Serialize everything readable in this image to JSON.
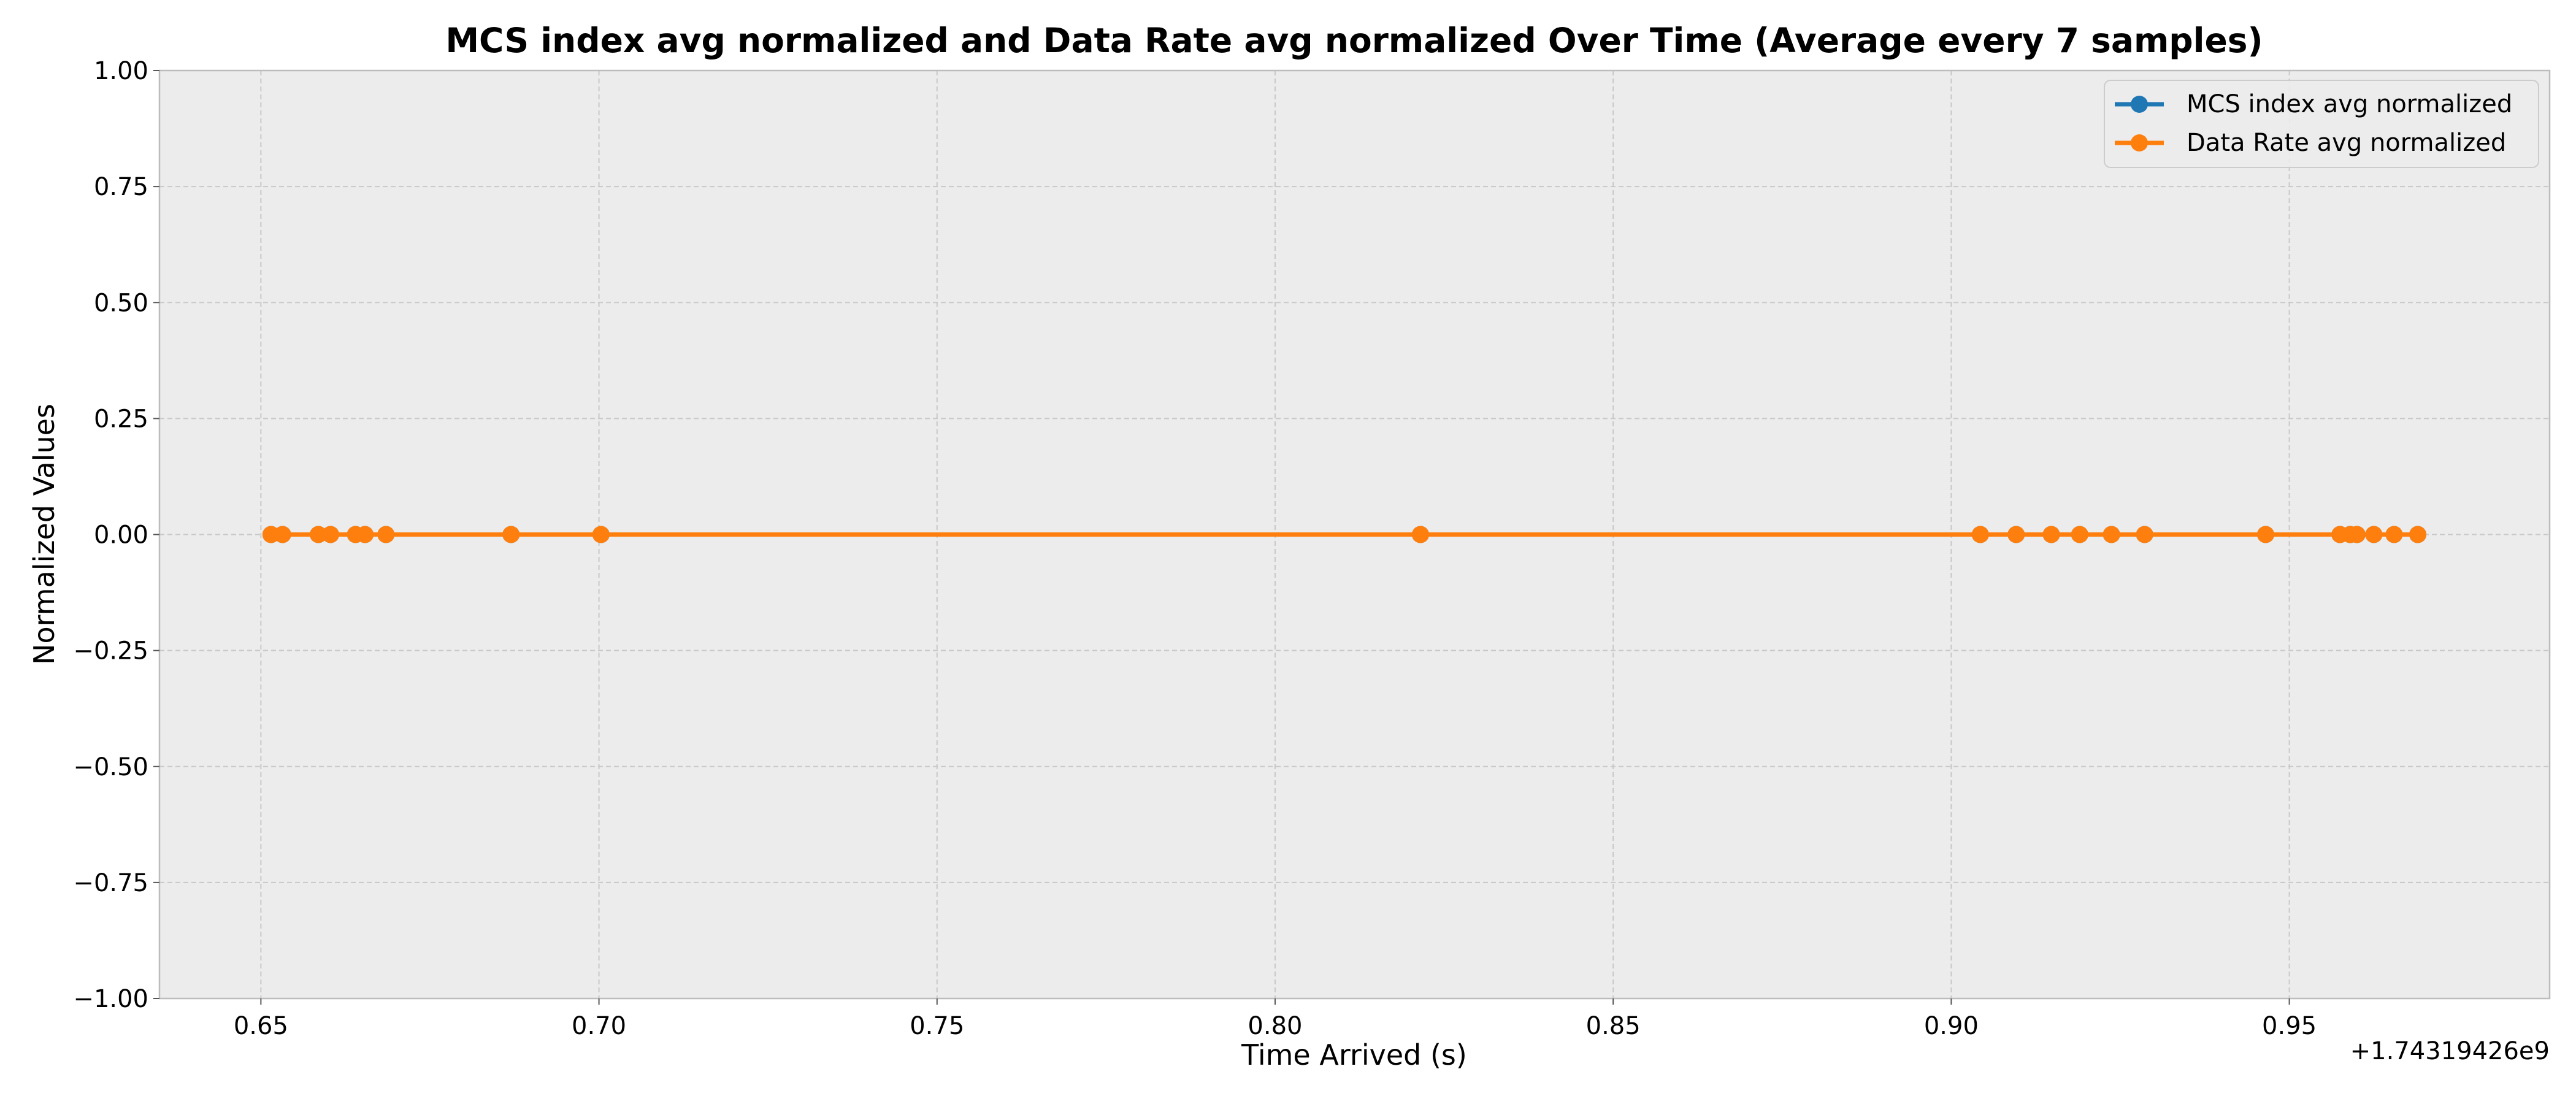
{
  "chart_data": {
    "type": "line",
    "title": "MCS index avg normalized and Data Rate avg normalized Over Time (Average every 7 samples)",
    "xlabel": "Time Arrived (s)",
    "ylabel": "Normalized Values",
    "x_offset_text": "+1.74319426e9",
    "xlim": [
      0.635,
      0.9885
    ],
    "ylim": [
      -1.0,
      1.0
    ],
    "xticks": [
      0.65,
      0.7,
      0.75,
      0.8,
      0.85,
      0.9,
      0.95
    ],
    "xtick_labels": [
      "0.65",
      "0.70",
      "0.75",
      "0.80",
      "0.85",
      "0.90",
      "0.95"
    ],
    "yticks": [
      -1.0,
      -0.75,
      -0.5,
      -0.25,
      0.0,
      0.25,
      0.5,
      0.75,
      1.0
    ],
    "ytick_labels": [
      "−1.00",
      "−0.75",
      "−0.50",
      "−0.25",
      "0.00",
      "0.25",
      "0.50",
      "0.75",
      "1.00"
    ],
    "grid": true,
    "legend_position": "top-right",
    "x": [
      0.6515,
      0.6532,
      0.6585,
      0.6603,
      0.664,
      0.6654,
      0.6685,
      0.687,
      0.7003,
      0.8215,
      0.9043,
      0.9096,
      0.9148,
      0.919,
      0.9237,
      0.9286,
      0.9465,
      0.9575,
      0.959,
      0.96,
      0.9625,
      0.9655,
      0.969
    ],
    "series": [
      {
        "name": "MCS index avg normalized",
        "color": "#1f77b4",
        "values": [
          0,
          0,
          0,
          0,
          0,
          0,
          0,
          0,
          0,
          0,
          0,
          0,
          0,
          0,
          0,
          0,
          0,
          0,
          0,
          0,
          0,
          0,
          0
        ]
      },
      {
        "name": "Data Rate avg normalized",
        "color": "#ff7f0e",
        "values": [
          0,
          0,
          0,
          0,
          0,
          0,
          0,
          0,
          0,
          0,
          0,
          0,
          0,
          0,
          0,
          0,
          0,
          0,
          0,
          0,
          0,
          0,
          0
        ]
      }
    ]
  }
}
